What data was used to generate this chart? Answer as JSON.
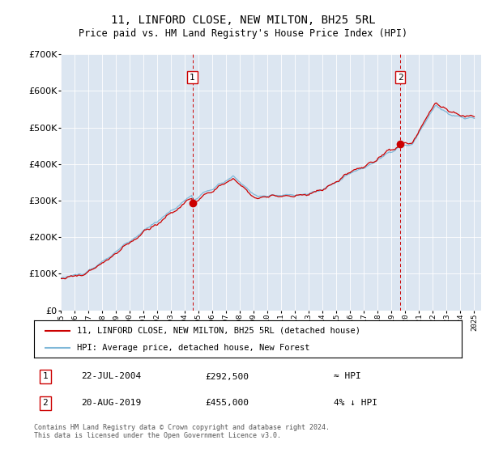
{
  "title": "11, LINFORD CLOSE, NEW MILTON, BH25 5RL",
  "subtitle": "Price paid vs. HM Land Registry's House Price Index (HPI)",
  "legend_line1": "11, LINFORD CLOSE, NEW MILTON, BH25 5RL (detached house)",
  "legend_line2": "HPI: Average price, detached house, New Forest",
  "annotation1_date": "22-JUL-2004",
  "annotation1_price": "£292,500",
  "annotation1_hpi": "≈ HPI",
  "annotation1_year": 2004.55,
  "annotation1_value": 292500,
  "annotation2_date": "20-AUG-2019",
  "annotation2_price": "£455,000",
  "annotation2_hpi": "4% ↓ HPI",
  "annotation2_year": 2019.63,
  "annotation2_value": 455000,
  "footer": "Contains HM Land Registry data © Crown copyright and database right 2024.\nThis data is licensed under the Open Government Licence v3.0.",
  "bg_color": "#dce6f1",
  "red_color": "#cc0000",
  "blue_color": "#7fb8d8",
  "ylim": [
    0,
    700000
  ],
  "xlim_start": 1995,
  "xlim_end": 2025.5
}
